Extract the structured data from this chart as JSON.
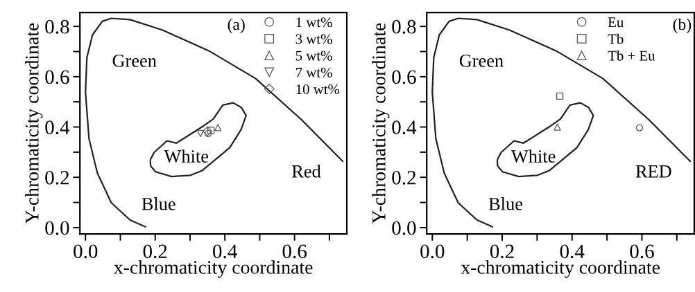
{
  "chart_data": [
    {
      "type": "scatter",
      "xlabel": "x-chromaticity coordinate",
      "ylabel": "Y-chromaticity coordinate",
      "xlim": [
        -0.016,
        0.75
      ],
      "ylim": [
        -0.025,
        0.855
      ],
      "xticks": [
        {
          "value": 0.0,
          "label": "0.0"
        },
        {
          "value": 0.1,
          "label": null
        },
        {
          "value": 0.2,
          "label": "0.2"
        },
        {
          "value": 0.3,
          "label": null
        },
        {
          "value": 0.4,
          "label": "0.4"
        },
        {
          "value": 0.5,
          "label": null
        },
        {
          "value": 0.6,
          "label": "0.6"
        },
        {
          "value": 0.7,
          "label": null
        }
      ],
      "yticks": [
        {
          "value": 0.0,
          "label": "0.0"
        },
        {
          "value": 0.1,
          "label": null
        },
        {
          "value": 0.2,
          "label": "0.2"
        },
        {
          "value": 0.3,
          "label": null
        },
        {
          "value": 0.4,
          "label": "0.4"
        },
        {
          "value": 0.5,
          "label": null
        },
        {
          "value": 0.6,
          "label": "0.6"
        },
        {
          "value": 0.7,
          "label": null
        },
        {
          "value": 0.8,
          "label": "0.8"
        }
      ],
      "grid": false,
      "legend": "top right",
      "annotations": [
        "(a)",
        "Green",
        "White",
        "Blue",
        "Red"
      ],
      "series": [
        {
          "type": "line",
          "color": "#222222",
          "line_style": "solid",
          "x": [
            0.172,
            0.128,
            0.074,
            0.034,
            0.01,
            0.0,
            0.004,
            0.02,
            0.048,
            0.074,
            0.128,
            0.22,
            0.354,
            0.488,
            0.62,
            0.738
          ],
          "values": [
            0.003,
            0.03,
            0.099,
            0.217,
            0.354,
            0.538,
            0.676,
            0.766,
            0.82,
            0.832,
            0.827,
            0.786,
            0.703,
            0.593,
            0.429,
            0.264
          ]
        },
        {
          "type": "line",
          "color": "#222222",
          "line_style": "solid",
          "x": [
            0.187,
            0.197,
            0.234,
            0.261,
            0.334,
            0.367,
            0.394,
            0.424,
            0.447,
            0.461,
            0.447,
            0.414,
            0.374,
            0.334,
            0.301,
            0.247,
            0.201,
            0.187,
            0.186
          ],
          "values": [
            0.272,
            0.299,
            0.345,
            0.336,
            0.4,
            0.432,
            0.487,
            0.496,
            0.478,
            0.446,
            0.391,
            0.318,
            0.272,
            0.226,
            0.208,
            0.203,
            0.222,
            0.245,
            0.266
          ]
        },
        {
          "name": "1 wt%",
          "marker": "circle",
          "color": "#555555",
          "x": [
            0.352
          ],
          "values": [
            0.374
          ]
        },
        {
          "name": "3 wt%",
          "marker": "square",
          "color": "#555555",
          "x": [
            0.36
          ],
          "values": [
            0.387
          ]
        },
        {
          "name": "5 wt%",
          "marker": "triangle",
          "color": "#555555",
          "x": [
            0.38
          ],
          "values": [
            0.398
          ]
        },
        {
          "name": "7 wt%",
          "marker": "triangle_down",
          "color": "#555555",
          "x": [
            0.33
          ],
          "values": [
            0.374
          ]
        },
        {
          "name": "10 wt%",
          "marker": "diamond",
          "color": "#555555",
          "x": [
            0.35
          ],
          "values": [
            0.383
          ]
        }
      ]
    },
    {
      "type": "scatter",
      "xlabel": "x-chromaticity coordinate",
      "ylabel": "Y-chromaticity coordinate",
      "xlim": [
        -0.016,
        0.75
      ],
      "ylim": [
        -0.025,
        0.855
      ],
      "xticks": [
        {
          "value": 0.0,
          "label": "0.0"
        },
        {
          "value": 0.1,
          "label": null
        },
        {
          "value": 0.2,
          "label": "0.2"
        },
        {
          "value": 0.3,
          "label": null
        },
        {
          "value": 0.4,
          "label": "0.4"
        },
        {
          "value": 0.5,
          "label": null
        },
        {
          "value": 0.6,
          "label": "0.6"
        },
        {
          "value": 0.7,
          "label": null
        }
      ],
      "yticks": [
        {
          "value": 0.0,
          "label": "0.0"
        },
        {
          "value": 0.1,
          "label": null
        },
        {
          "value": 0.2,
          "label": "0.2"
        },
        {
          "value": 0.3,
          "label": null
        },
        {
          "value": 0.4,
          "label": "0.4"
        },
        {
          "value": 0.5,
          "label": null
        },
        {
          "value": 0.6,
          "label": "0.6"
        },
        {
          "value": 0.7,
          "label": null
        },
        {
          "value": 0.8,
          "label": "0.8"
        }
      ],
      "grid": false,
      "legend": "top right",
      "annotations": [
        "(b)",
        "Green",
        "White",
        "Blue",
        "RED"
      ],
      "series": [
        {
          "type": "line",
          "color": "#222222",
          "line_style": "solid",
          "x": [
            0.172,
            0.128,
            0.074,
            0.034,
            0.01,
            0.0,
            0.004,
            0.02,
            0.048,
            0.074,
            0.128,
            0.22,
            0.354,
            0.488,
            0.62,
            0.738
          ],
          "values": [
            0.003,
            0.03,
            0.099,
            0.217,
            0.354,
            0.538,
            0.676,
            0.766,
            0.82,
            0.832,
            0.827,
            0.786,
            0.703,
            0.593,
            0.429,
            0.264
          ]
        },
        {
          "type": "line",
          "color": "#222222",
          "line_style": "solid",
          "x": [
            0.187,
            0.197,
            0.234,
            0.261,
            0.334,
            0.367,
            0.394,
            0.424,
            0.447,
            0.461,
            0.447,
            0.414,
            0.374,
            0.334,
            0.301,
            0.247,
            0.201,
            0.187,
            0.186
          ],
          "values": [
            0.272,
            0.299,
            0.345,
            0.336,
            0.4,
            0.432,
            0.487,
            0.496,
            0.478,
            0.446,
            0.391,
            0.318,
            0.272,
            0.226,
            0.208,
            0.203,
            0.222,
            0.245,
            0.266
          ]
        },
        {
          "name": "Eu",
          "marker": "circle",
          "color": "#555555",
          "x": [
            0.593
          ],
          "values": [
            0.397
          ]
        },
        {
          "name": "Tb",
          "marker": "square",
          "color": "#555555",
          "x": [
            0.365
          ],
          "values": [
            0.523
          ]
        },
        {
          "name": "Tb + Eu",
          "marker": "triangle",
          "color": "#555555",
          "x": [
            0.358
          ],
          "values": [
            0.4
          ]
        }
      ]
    }
  ]
}
